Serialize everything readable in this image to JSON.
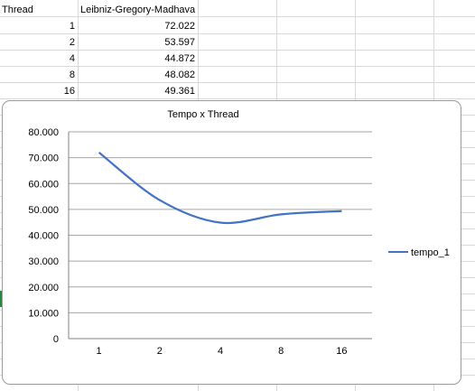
{
  "sheet": {
    "headers": {
      "A": "Thread",
      "B": "Leibniz-Gregory-Madhava"
    },
    "rows": [
      {
        "thread": "1",
        "value": "72.022"
      },
      {
        "thread": "2",
        "value": "53.597"
      },
      {
        "thread": "4",
        "value": "44.872"
      },
      {
        "thread": "8",
        "value": "48.082"
      },
      {
        "thread": "16",
        "value": "49.361"
      }
    ]
  },
  "chart_data": {
    "type": "line",
    "title": "Tempo x Thread",
    "categories": [
      "1",
      "2",
      "4",
      "8",
      "16"
    ],
    "series": [
      {
        "name": "tempo_1",
        "values": [
          72.022,
          53.597,
          44.872,
          48.082,
          49.361
        ],
        "color": "#4472c4"
      }
    ],
    "ylim": [
      0,
      80
    ],
    "yticks": [
      0,
      10,
      20,
      30,
      40,
      50,
      60,
      70,
      80
    ],
    "ytick_labels": [
      "0",
      "10.000",
      "20.000",
      "30.000",
      "40.000",
      "50.000",
      "60.000",
      "70.000",
      "80.000"
    ],
    "grid": true,
    "legend": "right",
    "smooth": true
  }
}
